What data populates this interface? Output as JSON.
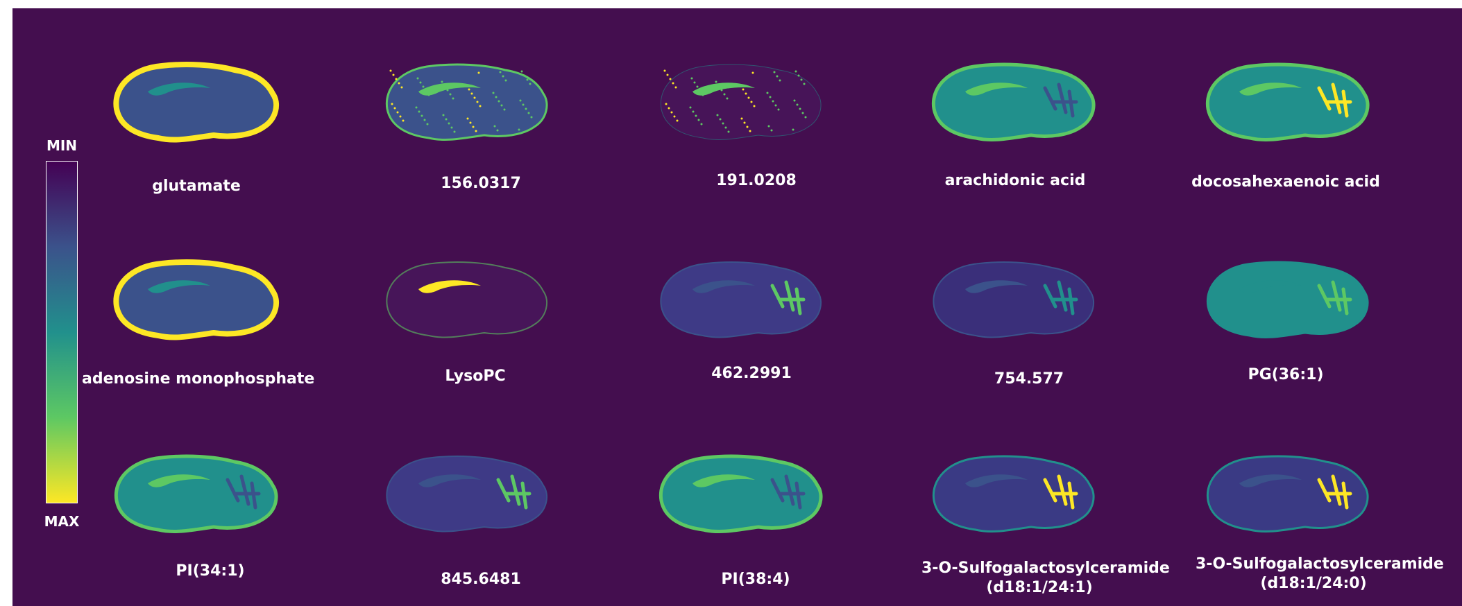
{
  "colorbar": {
    "min_label": "MIN",
    "max_label": "MAX",
    "colormap": [
      "#440154",
      "#3b528b",
      "#21908c",
      "#5dc863",
      "#fde725"
    ]
  },
  "colors": {
    "background": "#440e4f",
    "text": "#ffffff"
  },
  "images": [
    {
      "label": "glutamate",
      "label2": "",
      "style": "edge-bright"
    },
    {
      "label": "156.0317",
      "label2": "",
      "style": "speckled"
    },
    {
      "label": "191.0208",
      "label2": "",
      "style": "sparse"
    },
    {
      "label": "arachidonic acid",
      "label2": "",
      "style": "smooth-green"
    },
    {
      "label": "docosahexaenoic acid",
      "label2": "",
      "style": "smooth-green-cerebellum"
    },
    {
      "label": "adenosine monophosphate",
      "label2": "",
      "style": "edge-bright"
    },
    {
      "label": "LysoPC",
      "label2": "",
      "style": "partial"
    },
    {
      "label": "462.2991",
      "label2": "",
      "style": "white-matter"
    },
    {
      "label": "754.577",
      "label2": "",
      "style": "white-matter-dark"
    },
    {
      "label": "PG(36:1)",
      "label2": "",
      "style": "smooth-teal"
    },
    {
      "label": "PI(34:1)",
      "label2": "",
      "style": "smooth-green"
    },
    {
      "label": "845.6481",
      "label2": "",
      "style": "white-matter"
    },
    {
      "label": "PI(38:4)",
      "label2": "",
      "style": "smooth-green"
    },
    {
      "label": "3-O-Sulfogalactosylceramide",
      "label2": "(d18:1/24:1)",
      "style": "white-matter-bright"
    },
    {
      "label": "3-O-Sulfogalactosylceramide",
      "label2": "(d18:1/24:0)",
      "style": "white-matter-bright"
    }
  ]
}
